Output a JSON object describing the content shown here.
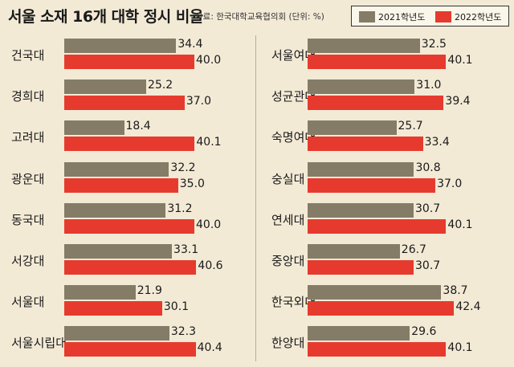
{
  "title": "서울 소재 16개 대학 정시 비율",
  "source": "자료: 한국대학교육협의회 (단위: %)",
  "colors": {
    "s2021": "#857c68",
    "s2022": "#e63a2e",
    "background": "#f3ead6"
  },
  "chart_data": {
    "type": "bar",
    "orientation": "horizontal",
    "title": "서울 소재 16개 대학 정시 비율",
    "unit": "%",
    "xlim": [
      0,
      45
    ],
    "legend": "top-right",
    "series": [
      {
        "name": "2021학년도",
        "color": "#857c68"
      },
      {
        "name": "2022학년도",
        "color": "#e63a2e"
      }
    ],
    "columns": [
      {
        "categories": [
          "건국대",
          "경희대",
          "고려대",
          "광운대",
          "동국대",
          "서강대",
          "서울대",
          "서울시립대"
        ],
        "values2021": [
          34.4,
          25.2,
          18.4,
          32.2,
          31.2,
          33.1,
          21.9,
          32.3
        ],
        "values2022": [
          40.0,
          37.0,
          40.1,
          35.0,
          40.0,
          40.6,
          30.1,
          40.4
        ]
      },
      {
        "categories": [
          "서울여대",
          "성균관대",
          "숙명여대",
          "숭실대",
          "연세대",
          "중앙대",
          "한국외대",
          "한양대"
        ],
        "values2021": [
          32.5,
          31.0,
          25.7,
          30.8,
          30.7,
          26.7,
          38.7,
          29.6
        ],
        "values2022": [
          40.1,
          39.4,
          33.4,
          37.0,
          40.1,
          30.7,
          42.4,
          40.1
        ]
      }
    ]
  }
}
